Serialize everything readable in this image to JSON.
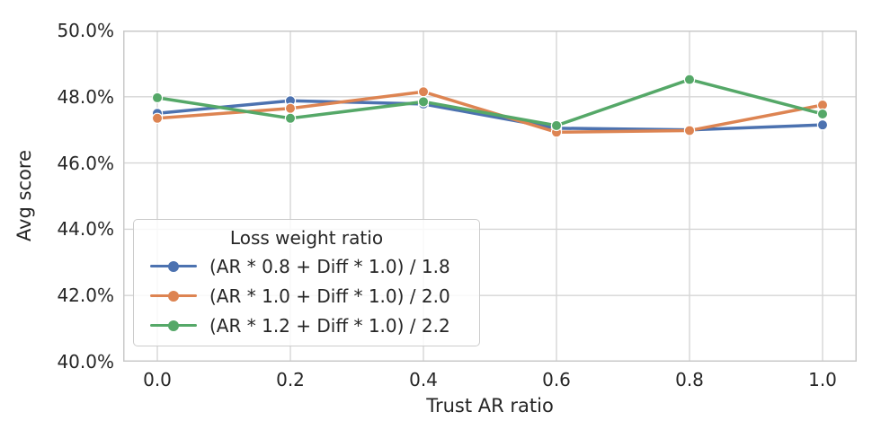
{
  "figure": {
    "background": "#ffffff",
    "text_color": "#262626",
    "grid_color": "#d6d6d6",
    "spine_color": "#c9c9c9"
  },
  "chart_data": {
    "type": "line",
    "title": "",
    "xlabel": "Trust AR ratio",
    "ylabel": "Avg score",
    "x": [
      0.0,
      0.2,
      0.4,
      0.6,
      0.8,
      1.0
    ],
    "xtick_labels": [
      "0.0",
      "0.2",
      "0.4",
      "0.6",
      "0.8",
      "1.0"
    ],
    "ytick_values": [
      50,
      48,
      46,
      44,
      42,
      40
    ],
    "ytick_labels": [
      "50.0%",
      "48.0%",
      "46.0%",
      "44.0%",
      "42.0%",
      "40.0%"
    ],
    "ylim": [
      40.0,
      50.0
    ],
    "grid": true,
    "marker": "circle",
    "legend": {
      "title": "Loss weight ratio",
      "position": "lower-left-inside"
    },
    "series": [
      {
        "name": "(AR * 0.8 + Diff * 1.0) / 1.8",
        "color": "#4C72B0",
        "values": [
          47.5,
          47.88,
          47.78,
          47.05,
          47.0,
          47.15
        ]
      },
      {
        "name": "(AR * 1.0 + Diff * 1.0) / 2.0",
        "color": "#DD8452",
        "values": [
          47.35,
          47.65,
          48.15,
          46.93,
          46.98,
          47.75
        ]
      },
      {
        "name": "(AR * 1.2 + Diff * 1.0) / 2.2",
        "color": "#55A868",
        "values": [
          47.97,
          47.35,
          47.85,
          47.13,
          48.52,
          47.48
        ]
      }
    ]
  }
}
